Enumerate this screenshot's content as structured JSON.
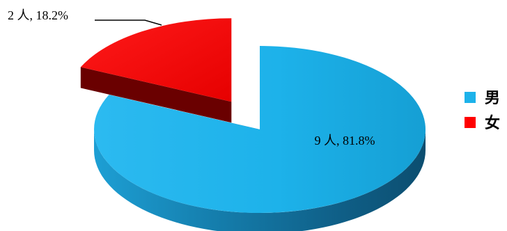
{
  "chart_data": {
    "type": "pie",
    "title": "",
    "categories": [
      "男",
      "女"
    ],
    "values": [
      9,
      2
    ],
    "data_labels": [
      "9 人, 81.8%",
      "2 人, 18.2%"
    ],
    "colors": [
      "#1DB2EA",
      "#FF0000"
    ],
    "exploded": [
      false,
      true
    ],
    "legend_placement": "right"
  }
}
